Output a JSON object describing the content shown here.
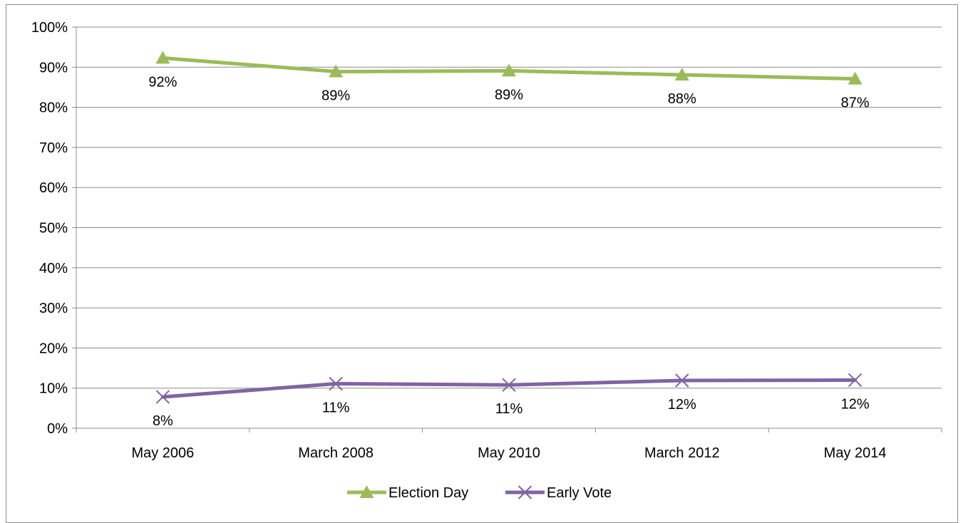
{
  "chart_data": {
    "type": "line",
    "categories": [
      "May 2006",
      "March 2008",
      "May 2010",
      "March 2012",
      "May 2014"
    ],
    "series": [
      {
        "name": "Election Day",
        "values": [
          92,
          89,
          89,
          88,
          87
        ],
        "plotted_values": [
          92.3,
          88.9,
          89.1,
          88.1,
          87.1
        ],
        "labels": [
          "92%",
          "89%",
          "89%",
          "88%",
          "87%"
        ],
        "label_position": "below",
        "color": "#9bbb59",
        "marker": "triangle"
      },
      {
        "name": "Early Vote",
        "values": [
          8,
          11,
          11,
          12,
          12
        ],
        "plotted_values": [
          7.8,
          11.1,
          10.8,
          11.9,
          12.0
        ],
        "labels": [
          "8%",
          "11%",
          "11%",
          "12%",
          "12%"
        ],
        "label_position": "below",
        "color": "#8064a2",
        "marker": "x"
      }
    ],
    "y_ticks": [
      "0%",
      "10%",
      "20%",
      "30%",
      "40%",
      "50%",
      "60%",
      "70%",
      "80%",
      "90%",
      "100%"
    ],
    "ylim": [
      0,
      100
    ],
    "grid": "horizontal",
    "legend": "bottom",
    "title": "",
    "xlabel": "",
    "ylabel": ""
  }
}
